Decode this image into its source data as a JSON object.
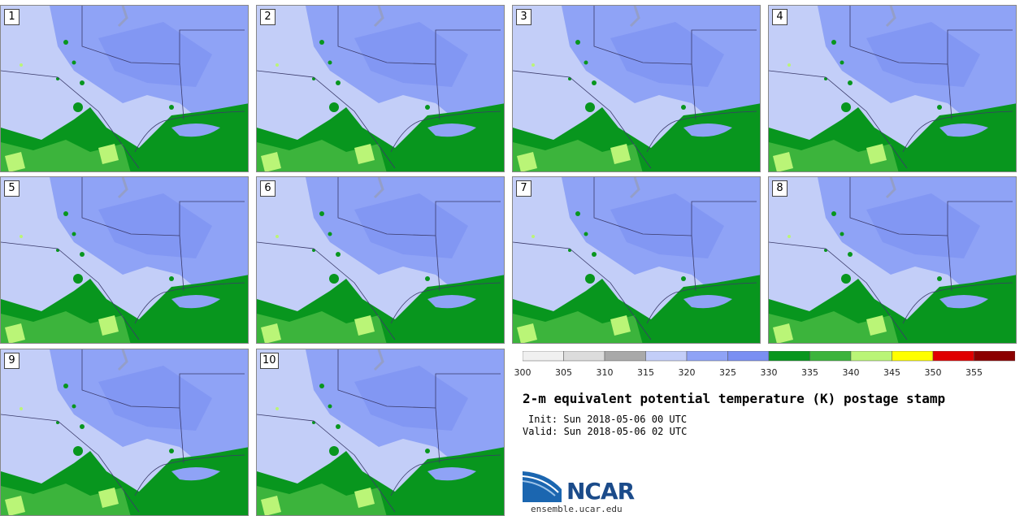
{
  "panels": [
    "1",
    "2",
    "3",
    "4",
    "5",
    "6",
    "7",
    "8",
    "9",
    "10"
  ],
  "colorbar": {
    "colors": [
      "#f0f0f0",
      "#dcdcdc",
      "#a9a9a9",
      "#c3cef8",
      "#8fa3f6",
      "#7a8ff2",
      "#08961e",
      "#3cb43c",
      "#baf577",
      "#ffff00",
      "#e00000",
      "#8b0000"
    ],
    "ticks": [
      "300",
      "305",
      "310",
      "315",
      "320",
      "325",
      "330",
      "335",
      "340",
      "345",
      "350",
      "355"
    ]
  },
  "title": "2-m equivalent potential temperature (K) postage stamp",
  "init": "Init: Sun 2018-05-06 00 UTC",
  "valid": "Valid: Sun 2018-05-06 02 UTC",
  "logo": {
    "text": "NCAR"
  },
  "website": "ensemble.ucar.edu"
}
